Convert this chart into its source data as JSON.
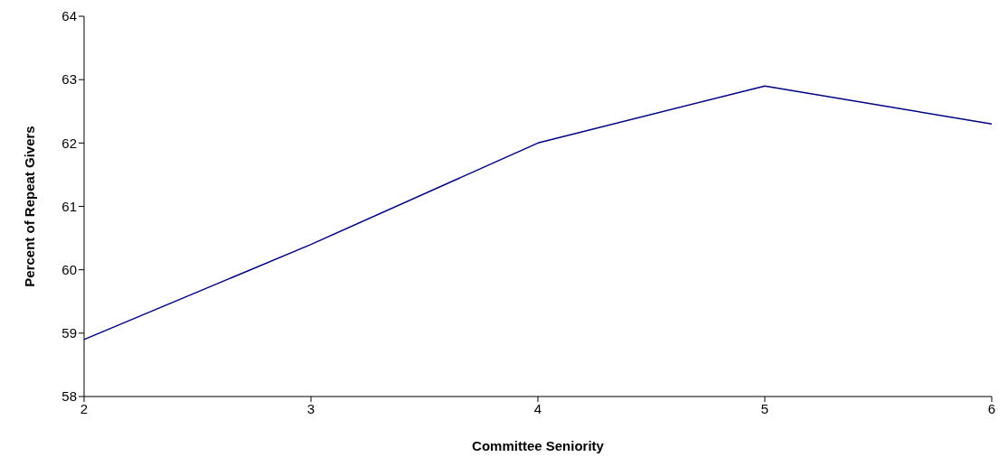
{
  "chart_data": {
    "type": "line",
    "xlabel": "Committee Seniority",
    "ylabel": "Percent of Repeat Givers",
    "categories": [
      "2",
      "3",
      "4",
      "5",
      "6"
    ],
    "series": [
      {
        "color": "#000080",
        "values": [
          58.9,
          60.4,
          62.0,
          62.9,
          62.3
        ]
      }
    ],
    "ylim": [
      58,
      64
    ],
    "yticks": [
      58,
      59,
      60,
      61,
      62,
      63,
      64
    ],
    "grid": false,
    "legend": false,
    "marker": "none",
    "line_style": "solid"
  }
}
